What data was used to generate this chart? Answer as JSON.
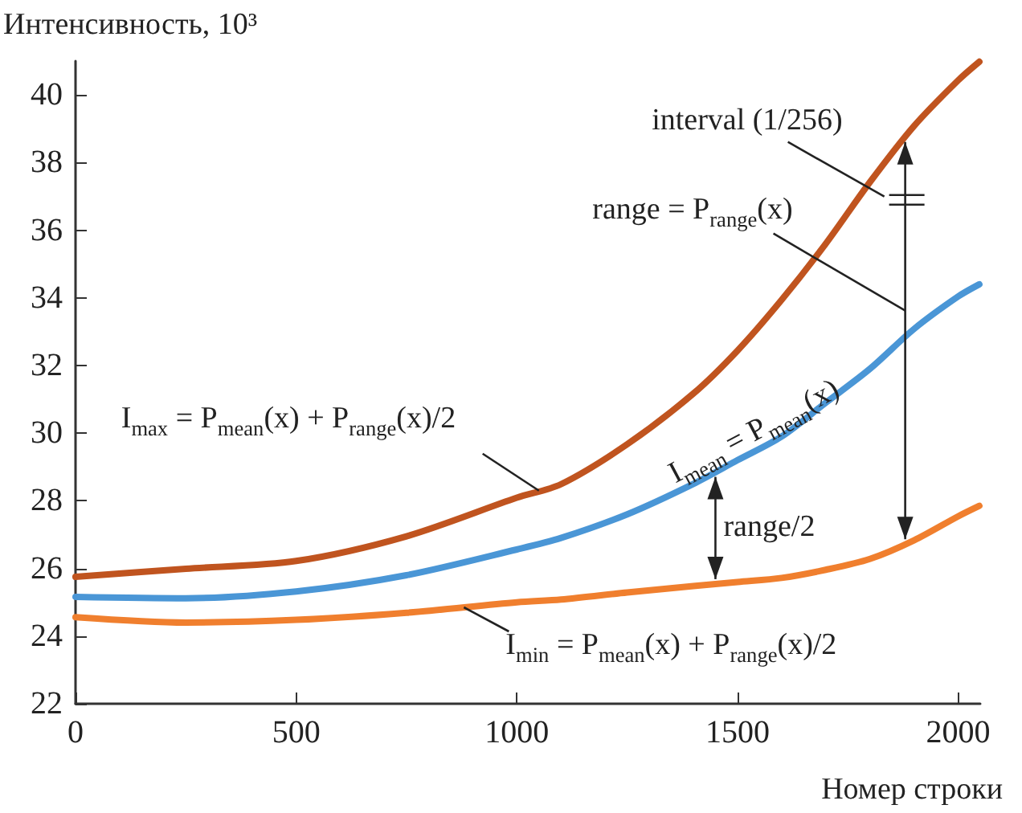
{
  "chart_data": {
    "type": "line",
    "ylabel": "Интенсивность, 10³",
    "xlabel": "Номер строки",
    "x": [
      0,
      250,
      500,
      750,
      1000,
      1100,
      1250,
      1400,
      1500,
      1600,
      1700,
      1800,
      1900,
      2000,
      2048
    ],
    "series": [
      {
        "color": "#c0541f",
        "values": [
          25.75,
          25.99,
          26.22,
          26.95,
          28.09,
          28.49,
          29.67,
          31.17,
          32.44,
          33.94,
          35.6,
          37.42,
          39.08,
          40.43,
          40.98
        ]
      },
      {
        "color": "#4a96d6",
        "values": [
          25.16,
          25.12,
          25.32,
          25.8,
          26.56,
          26.9,
          27.6,
          28.5,
          29.2,
          29.9,
          30.9,
          31.9,
          33.08,
          34.04,
          34.4
        ]
      },
      {
        "color": "#f07f2e",
        "values": [
          24.56,
          24.4,
          24.48,
          24.69,
          25.0,
          25.08,
          25.29,
          25.48,
          25.6,
          25.72,
          25.96,
          26.28,
          26.83,
          27.54,
          27.85
        ]
      }
    ],
    "xlim": [
      0,
      2050
    ],
    "xticks": [
      0,
      500,
      1000,
      1500,
      2000
    ],
    "ylim": [
      22,
      41
    ],
    "yticks": [
      22,
      24,
      26,
      28,
      30,
      32,
      34,
      36,
      38,
      40
    ],
    "marker": "none",
    "line_style": "solid",
    "annotations": [
      {
        "text": "I$_{max}$ = P$_{mean}$(x) + P$_{range}$(x)/2",
        "x": 1050,
        "y": 28.3
      },
      {
        "text": "I$_{mean}$ = P$_{mean}$(x)",
        "x": 1300,
        "y": 27.8
      },
      {
        "text": "range/2",
        "x": 1450,
        "y": 28.85
      },
      {
        "text": "I$_{min}$ = P$_{mean}$(x) + P$_{range}$(x)/2",
        "x": 880,
        "y": 24.85
      },
      "range = P$_{range}$(x)",
      {
        "text": "interval (1/256)",
        "x": 1880,
        "y": 38.75
      }
    ]
  }
}
